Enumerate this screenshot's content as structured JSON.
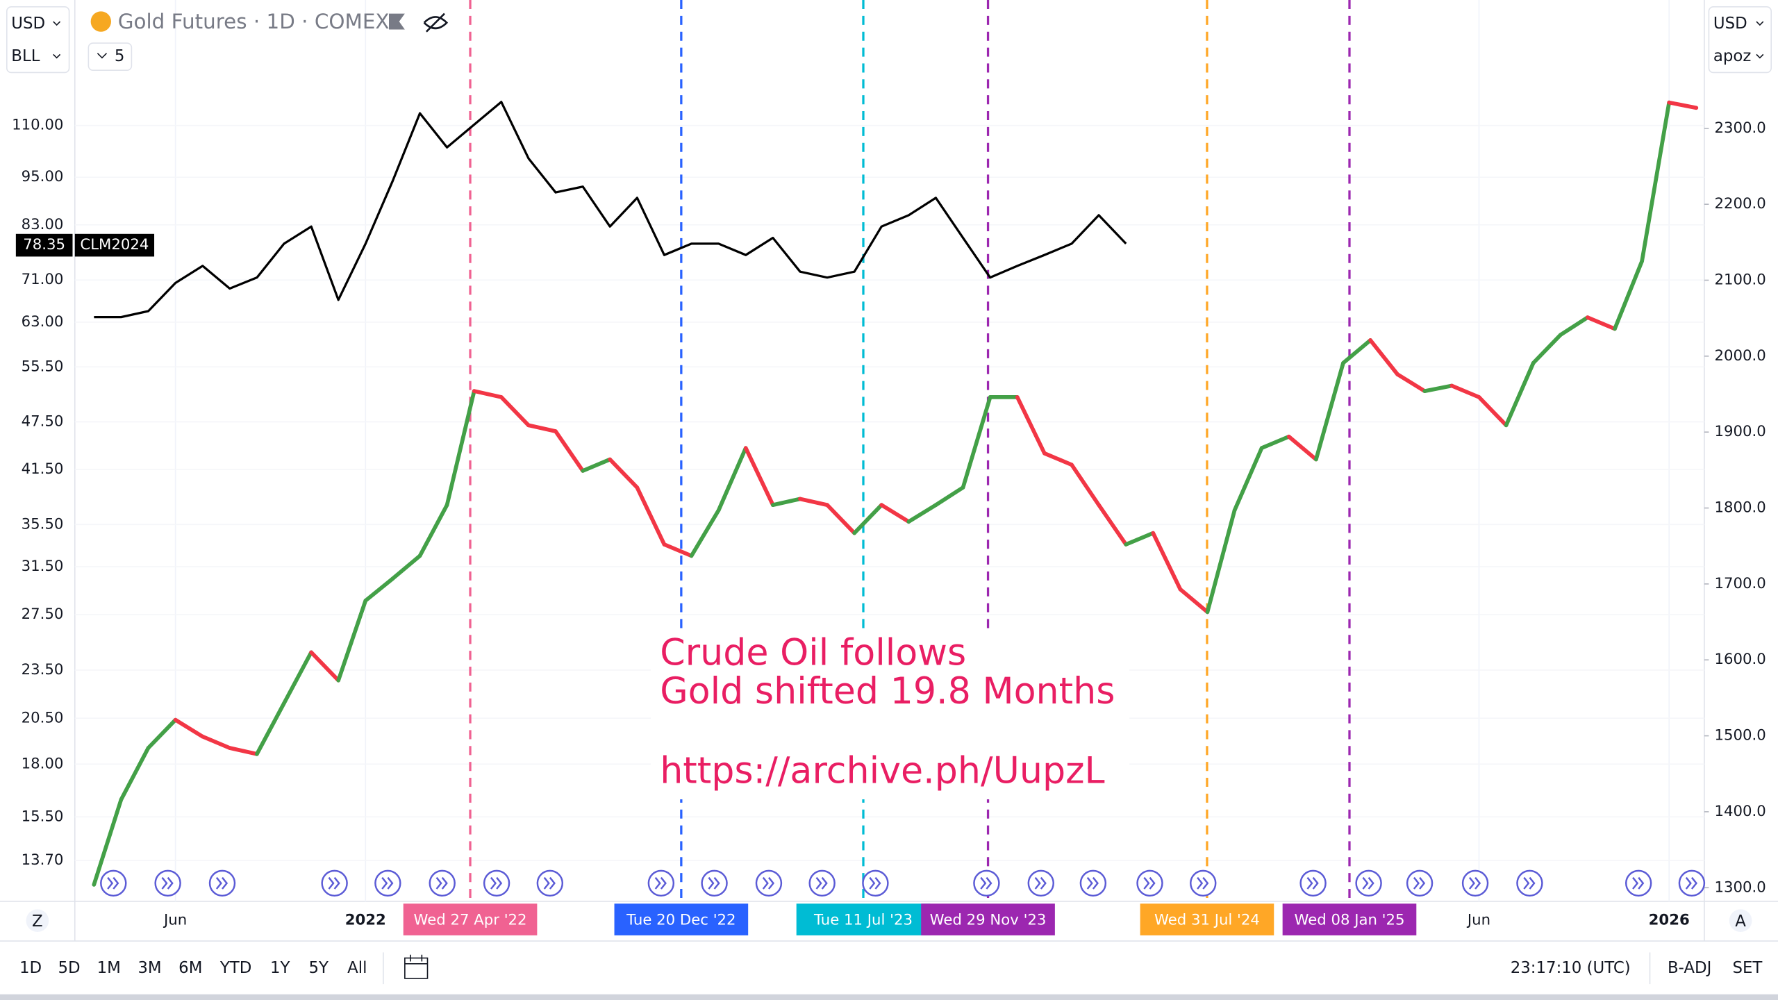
{
  "chart_data": {
    "type": "line",
    "x": [
      "2021-03",
      "2021-04",
      "2021-05",
      "2021-06",
      "2021-07",
      "2021-08",
      "2021-09",
      "2021-10",
      "2021-11",
      "2021-12",
      "2022-01",
      "2022-02",
      "2022-03",
      "2022-04",
      "2022-05",
      "2022-06",
      "2022-07",
      "2022-08",
      "2022-09",
      "2022-10",
      "2022-11",
      "2022-12",
      "2023-01",
      "2023-02",
      "2023-03",
      "2023-04",
      "2023-05",
      "2023-06",
      "2023-07",
      "2023-08",
      "2023-09",
      "2023-10",
      "2023-11",
      "2023-12",
      "2024-01",
      "2024-02",
      "2024-03",
      "2024-04",
      "2024-05",
      "2024-06",
      "2024-07",
      "2024-08",
      "2024-09",
      "2024-10",
      "2024-11",
      "2024-12",
      "2025-01",
      "2025-02",
      "2025-03",
      "2025-04",
      "2025-05",
      "2025-06",
      "2025-07",
      "2025-08",
      "2025-09",
      "2025-10",
      "2025-11",
      "2025-12",
      "2026-01",
      "2026-02"
    ],
    "series": [
      {
        "name": "Gold Futures · 1D · COMEX",
        "axis": "y2",
        "color": "#43a047",
        "down_color": "#f23645",
        "values": [
          1304,
          1416,
          1484,
          1521,
          1499,
          1484,
          1476,
          1543,
          1610,
          1573,
          1678,
          1707,
          1737,
          1804,
          1954,
          1946,
          1909,
          1901,
          1849,
          1864,
          1827,
          1752,
          1737,
          1797,
          1879,
          1804,
          1812,
          1804,
          1767,
          1804,
          1782,
          1804,
          1827,
          1946,
          1946,
          1872,
          1857,
          1804,
          1752,
          1767,
          1693,
          1663,
          1797,
          1879,
          1894,
          1864,
          1991,
          2021,
          1976,
          1954,
          1961,
          1946,
          1909,
          1991,
          2028,
          2051,
          2036,
          2125,
          2334,
          2327
        ]
      },
      {
        "name": "CLM2024",
        "color": "#000000",
        "values": [
          63.9,
          63.9,
          65.0,
          70.4,
          73.9,
          69.3,
          71.5,
          78.7,
          82.6,
          67.1,
          78.7,
          94.0,
          113.9,
          103.4,
          110.3,
          117.6,
          100.2,
          91.0,
          92.5,
          82.6,
          89.6,
          76.2,
          78.7,
          78.7,
          76.2,
          80.0,
          72.7,
          71.5,
          72.7,
          82.6,
          85.3,
          89.6,
          80.0,
          71.5,
          73.9,
          76.2,
          78.7,
          85.3,
          78.7,
          null,
          null,
          null,
          null,
          null,
          null,
          null,
          null,
          null,
          null,
          null,
          null,
          null,
          null,
          null,
          null,
          null,
          null,
          null,
          null,
          null
        ]
      }
    ],
    "crosshair_value": 78.35,
    "xlim": [
      "2021-02-10",
      "2026-02-10"
    ],
    "xticks": [
      {
        "value": "2021-06",
        "label": "Jun"
      },
      {
        "value": "2022-01",
        "label": "2022"
      },
      {
        "value": "2025-06",
        "label": "Jun"
      },
      {
        "value": "2026-01",
        "label": "2026"
      }
    ],
    "ylim": [
      12.2,
      157
    ],
    "log_scale": true,
    "yticks": [
      {
        "value": 110,
        "label": "110.00"
      },
      {
        "value": 95,
        "label": "95.00"
      },
      {
        "value": 83,
        "label": "83.00"
      },
      {
        "value": 71,
        "label": "71.00"
      },
      {
        "value": 63,
        "label": "63.00"
      },
      {
        "value": 55.5,
        "label": "55.50"
      },
      {
        "value": 47.5,
        "label": "47.50"
      },
      {
        "value": 41.5,
        "label": "41.50"
      },
      {
        "value": 35.5,
        "label": "35.50"
      },
      {
        "value": 31.5,
        "label": "31.50"
      },
      {
        "value": 27.5,
        "label": "27.50"
      },
      {
        "value": 23.5,
        "label": "23.50"
      },
      {
        "value": 20.5,
        "label": "20.50"
      },
      {
        "value": 18,
        "label": "18.00"
      },
      {
        "value": 15.5,
        "label": "15.50"
      },
      {
        "value": 13.7,
        "label": "13.70"
      }
    ],
    "y2lim": [
      1282,
      2469
    ],
    "y2ticks": [
      {
        "value": 2300,
        "label": "2300.0"
      },
      {
        "value": 2200,
        "label": "2200.0"
      },
      {
        "value": 2100,
        "label": "2100.0"
      },
      {
        "value": 2000,
        "label": "2000.0"
      },
      {
        "value": 1900,
        "label": "1900.0"
      },
      {
        "value": 1800,
        "label": "1800.0"
      },
      {
        "value": 1700,
        "label": "1700.0"
      },
      {
        "value": 1600,
        "label": "1600.0"
      },
      {
        "value": 1500,
        "label": "1500.0"
      },
      {
        "value": 1400,
        "label": "1400.0"
      },
      {
        "value": 1300,
        "label": "1300.0"
      }
    ],
    "grid": true,
    "markers": [
      {
        "x": "2022-04-27",
        "label": "Wed 27 Apr '22",
        "color": "#f06292"
      },
      {
        "x": "2022-12-20",
        "label": "Tue 20 Dec '22",
        "color": "#2962ff"
      },
      {
        "x": "2023-07-11",
        "label": "Tue 11 Jul '23",
        "color": "#00bcd4"
      },
      {
        "x": "2023-11-29",
        "label": "Wed 29 Nov '23",
        "color": "#9c27b0"
      },
      {
        "x": "2024-07-31",
        "label": "Wed 31 Jul '24",
        "color": "#ffa726"
      },
      {
        "x": "2025-01-08",
        "label": "Wed 08 Jan '25",
        "color": "#9c27b0"
      }
    ],
    "annotation": [
      "Crude Oil follows",
      "Gold shifted 19.8 Months",
      "https://archive.ph/UupzL"
    ],
    "annotation_color": "#e91e63"
  },
  "ui": {
    "left_currency": "USD",
    "left_unit": "BLL",
    "indicator_count": "5",
    "right_currency": "USD",
    "right_unit": "apoz",
    "ranges": [
      "1D",
      "5D",
      "1M",
      "3M",
      "6M",
      "YTD",
      "1Y",
      "5Y",
      "All"
    ],
    "clock": "23:17:10 (UTC)",
    "adjustment": "B-ADJ",
    "settlement": "SET",
    "left_scale_button": "Z",
    "right_scale_button": "A"
  }
}
